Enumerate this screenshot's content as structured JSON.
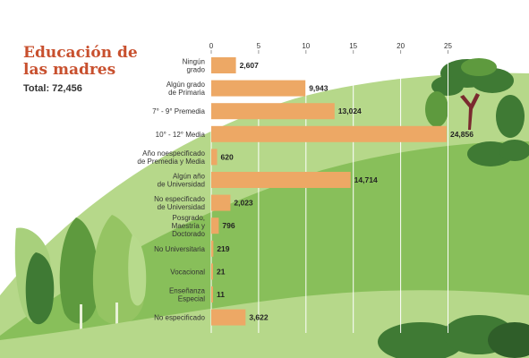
{
  "header": {
    "title": "Educación de las madres",
    "total": "Total: 72,456"
  },
  "colors": {
    "bar": "#eda865",
    "title": "#c8502e",
    "grid": "#ffffff",
    "hill_light": "#b6d88a",
    "hill_mid": "#88bf5a",
    "hill_dark": "#3f7a34"
  },
  "chart_data": {
    "type": "bar",
    "orientation": "horizontal",
    "title": "Educación de las madres",
    "subtitle": "Total: 72,456",
    "xlim": [
      0,
      27
    ],
    "xticks": [
      0,
      5,
      10,
      15,
      20,
      25
    ],
    "categories": [
      [
        "Ningún",
        "grado"
      ],
      [
        "Algún grado",
        "de Primaria"
      ],
      [
        "7° - 9° Premedia"
      ],
      [
        "10° - 12° Media"
      ],
      [
        "Año noespecificado",
        "de Premedia y Media"
      ],
      [
        "Algún año",
        "de Universidad"
      ],
      [
        "No especificado",
        "de Universidad"
      ],
      [
        "Posgrado,",
        "Maestría y",
        "Doctorado"
      ],
      [
        "No Universitaria"
      ],
      [
        "Vocacional"
      ],
      [
        "Enseñanza",
        "Especial"
      ],
      [
        "No especificado"
      ]
    ],
    "values": [
      2607,
      9943,
      13024,
      24856,
      620,
      14714,
      2023,
      796,
      219,
      21,
      11,
      3622
    ],
    "value_labels": [
      "2,607",
      "9,943",
      "13,024",
      "24,856",
      "620",
      "14,714",
      "2,023",
      "796",
      "219",
      "21",
      "11",
      "3,622"
    ],
    "value_scale": "axis in thousands",
    "grid": true,
    "legend": "none"
  }
}
